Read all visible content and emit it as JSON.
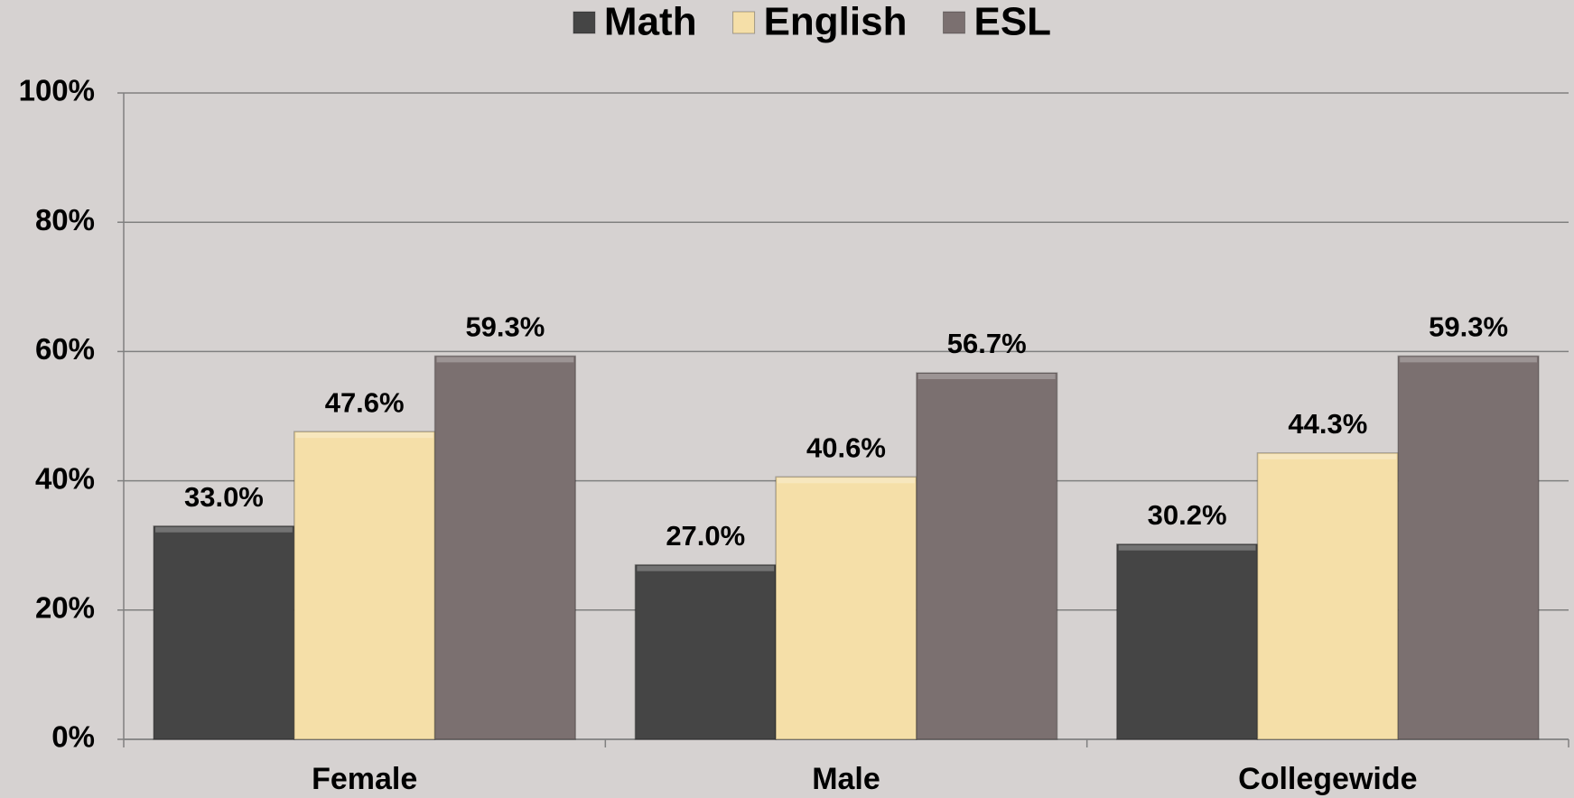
{
  "chart_data": {
    "type": "bar",
    "categories": [
      "Female",
      "Male",
      "Collegewide"
    ],
    "series": [
      {
        "name": "Math",
        "color": "#454545",
        "values": [
          33.0,
          27.0,
          30.2
        ],
        "value_labels": [
          "33.0%",
          "27.0%",
          "30.2%"
        ]
      },
      {
        "name": "English",
        "color": "#f5dfa8",
        "values": [
          47.6,
          40.6,
          44.3
        ],
        "value_labels": [
          "47.6%",
          "40.6%",
          "44.3%"
        ]
      },
      {
        "name": "ESL",
        "color": "#7b7070",
        "values": [
          59.3,
          56.7,
          59.3
        ],
        "value_labels": [
          "59.3%",
          "56.7%",
          "59.3%"
        ]
      }
    ],
    "ylim": [
      0,
      100
    ],
    "yticks": [
      {
        "value": 0,
        "label": "0%"
      },
      {
        "value": 20,
        "label": "20%"
      },
      {
        "value": 40,
        "label": "40%"
      },
      {
        "value": 60,
        "label": "60%"
      },
      {
        "value": 80,
        "label": "80%"
      },
      {
        "value": 100,
        "label": "100%"
      }
    ],
    "grid": true,
    "legend": "top"
  }
}
